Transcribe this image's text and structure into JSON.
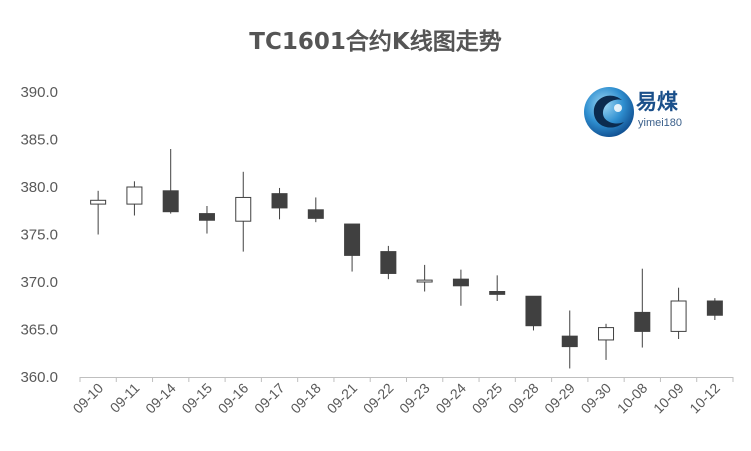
{
  "chart_data": {
    "type": "candlestick",
    "title": "TC1601合约K线图走势",
    "xlabel": "",
    "ylabel": "",
    "ylim": [
      360,
      390
    ],
    "yticks": [
      "390.0",
      "385.0",
      "380.0",
      "375.0",
      "370.0",
      "365.0",
      "360.0"
    ],
    "grid": false,
    "legend": "none",
    "categories": [
      "09-10",
      "09-11",
      "09-14",
      "09-15",
      "09-16",
      "09-17",
      "09-18",
      "09-21",
      "09-22",
      "09-23",
      "09-24",
      "09-25",
      "09-28",
      "09-29",
      "09-30",
      "10-08",
      "10-09",
      "10-12"
    ],
    "candles": [
      {
        "open": 378.2,
        "high": 379.6,
        "low": 375.0,
        "close": 378.6
      },
      {
        "open": 378.2,
        "high": 380.6,
        "low": 377.0,
        "close": 380.0
      },
      {
        "open": 379.6,
        "high": 384.0,
        "low": 377.2,
        "close": 377.4
      },
      {
        "open": 377.2,
        "high": 378.0,
        "low": 375.1,
        "close": 376.5
      },
      {
        "open": 376.4,
        "high": 381.6,
        "low": 373.2,
        "close": 378.9
      },
      {
        "open": 379.3,
        "high": 379.9,
        "low": 376.6,
        "close": 377.8
      },
      {
        "open": 377.6,
        "high": 378.9,
        "low": 376.3,
        "close": 376.7
      },
      {
        "open": 376.1,
        "high": 376.1,
        "low": 371.1,
        "close": 372.8
      },
      {
        "open": 373.2,
        "high": 373.8,
        "low": 370.3,
        "close": 370.9
      },
      {
        "open": 370.0,
        "high": 371.8,
        "low": 369.0,
        "close": 370.2
      },
      {
        "open": 370.3,
        "high": 371.3,
        "low": 367.5,
        "close": 369.6
      },
      {
        "open": 369.0,
        "high": 370.7,
        "low": 368.0,
        "close": 368.7
      },
      {
        "open": 368.5,
        "high": 368.5,
        "low": 364.9,
        "close": 365.4
      },
      {
        "open": 364.3,
        "high": 367.0,
        "low": 360.9,
        "close": 363.2
      },
      {
        "open": 363.9,
        "high": 365.6,
        "low": 361.8,
        "close": 365.2
      },
      {
        "open": 366.8,
        "high": 371.4,
        "low": 363.1,
        "close": 364.8
      },
      {
        "open": 364.8,
        "high": 369.4,
        "low": 364.0,
        "close": 368.0
      },
      {
        "open": 368.0,
        "high": 368.3,
        "low": 366.0,
        "close": 366.5
      }
    ],
    "colors": {
      "up_fill": "#ffffff",
      "down_fill": "#404040",
      "stroke": "#404040",
      "axis": "#bfbfbf",
      "tick_text": "#595959",
      "title": "#555555"
    }
  },
  "logo": {
    "name": "易煤",
    "sub": "yimei180"
  }
}
